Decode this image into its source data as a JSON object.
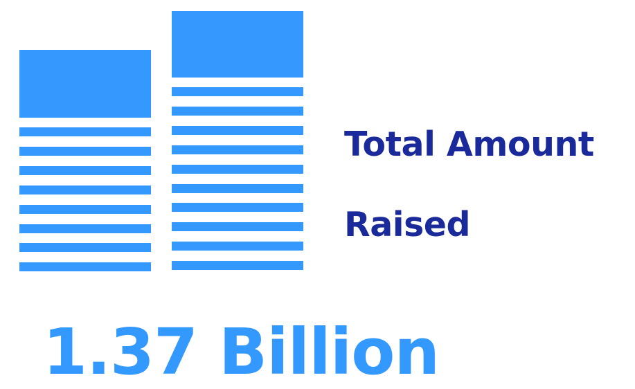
{
  "colors": {
    "accent": "#3399ff",
    "title": "#1a2a9a"
  },
  "icon": {
    "name": "documents-stack-icon",
    "stacks": [
      {
        "lines": 8
      },
      {
        "lines": 10
      }
    ]
  },
  "stat": {
    "label_line1": "Total Amount",
    "label_line2": "Raised",
    "value": "1.37 Billion"
  }
}
